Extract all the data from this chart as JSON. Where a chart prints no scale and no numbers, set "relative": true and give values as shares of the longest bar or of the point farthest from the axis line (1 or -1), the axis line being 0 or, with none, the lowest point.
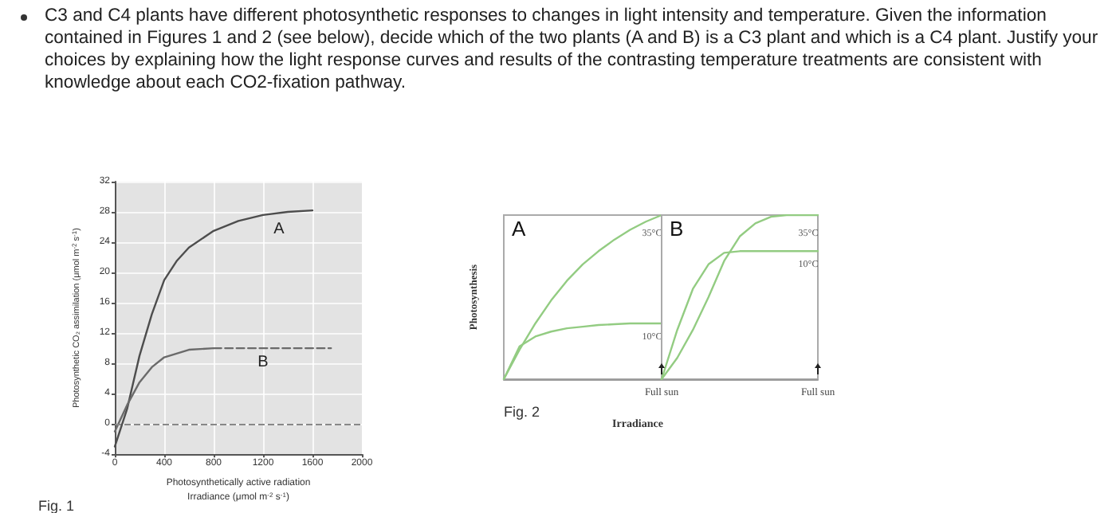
{
  "chart_data": [
    {
      "type": "line",
      "title": "C3 and C4 plants have different photosynthetic responses to changes in light intensity and temperature. Given the information contained in Figures 1 and 2 (see below), decide which of the two plants (A and B) is a C3 plant and which is a C4 plant.  Justify your choices by explaining how the light response curves and results of the contrasting temperature treatments are consistent with knowledge about each CO2-fixation pathway.",
      "xlabel": "Photosynthetically active radiation\nIrradiance (μmol m$^{-2}$ s$^{-1}$)",
      "ylabel": "Photosynthetic CO₂ assimilation (μmol m$^{-2}$ s$^{-1}$)",
      "annotations": [
        "Fig. 1"
      ],
      "xlim": [
        0,
        2000
      ],
      "xticks": [
        0,
        400,
        800,
        1200,
        1600,
        2000
      ],
      "ylim": [
        -4,
        32
      ],
      "yticks": [
        -4,
        0,
        4,
        8,
        12,
        16,
        20,
        24,
        28,
        32
      ],
      "grid": true,
      "marker": "none",
      "ref_lines": [
        {
          "axis": "y",
          "value": 0,
          "color": "#888888",
          "line_style": "dashed"
        }
      ],
      "series": [
        {
          "name": "A",
          "color": "#4d4d4d",
          "x": [
            0,
            100,
            200,
            300,
            400,
            500,
            600,
            800,
            1000,
            1200,
            1400,
            1600
          ],
          "values": [
            -3,
            2,
            9,
            14.5,
            19,
            21.5,
            23.3,
            25.5,
            26.8,
            27.6,
            28,
            28.2
          ]
        },
        {
          "name": "B",
          "color": "#6a6a6a",
          "x": [
            0,
            100,
            200,
            300,
            400,
            600,
            800
          ],
          "values": [
            -1,
            2.5,
            5.5,
            7.5,
            8.8,
            9.8,
            10
          ]
        },
        {
          "color": "#6a6a6a",
          "line_style": "dashed",
          "x": [
            800,
            1750
          ],
          "values": [
            10,
            10
          ]
        }
      ]
    },
    {
      "type": "line",
      "title": "A",
      "ylabel": "Photosynthesis",
      "xlabel": "Irradiance",
      "annotations": [
        "Fig. 2",
        "Full sun"
      ],
      "relative": true,
      "marker": "none",
      "categories": [
        null,
        null,
        null,
        null,
        null,
        null,
        null,
        null,
        null,
        null,
        null
      ],
      "series": [
        {
          "name": "35°C",
          "color": "#93cc82",
          "values": [
            0,
            0.18,
            0.34,
            0.48,
            0.6,
            0.7,
            0.78,
            0.85,
            0.91,
            0.96,
            1
          ]
        },
        {
          "name": "10°C",
          "color": "#93cc82",
          "values": [
            0,
            0.2,
            0.26,
            0.29,
            0.31,
            0.32,
            0.33,
            0.335,
            0.34,
            0.34,
            0.34
          ]
        }
      ]
    },
    {
      "type": "line",
      "title": "B",
      "annotations": [
        "Full sun"
      ],
      "relative": true,
      "marker": "none",
      "categories": [
        null,
        null,
        null,
        null,
        null,
        null,
        null,
        null,
        null,
        null,
        null
      ],
      "series": [
        {
          "name": "35°C",
          "color": "#93cc82",
          "values": [
            0,
            0.13,
            0.3,
            0.5,
            0.72,
            0.87,
            0.95,
            0.99,
            1,
            1,
            1
          ]
        },
        {
          "name": "10°C",
          "color": "#93cc82",
          "values": [
            0,
            0.3,
            0.55,
            0.7,
            0.77,
            0.78,
            0.78,
            0.78,
            0.78,
            0.78,
            0.78
          ]
        }
      ]
    }
  ]
}
